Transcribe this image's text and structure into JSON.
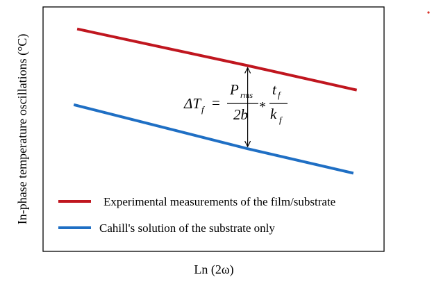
{
  "chart_data": {
    "type": "line",
    "title": "",
    "xlabel": "Ln (2ω)",
    "ylabel": "In-phase temperature oscillations (°C)",
    "xlim": [
      0,
      10
    ],
    "ylim": [
      0,
      10
    ],
    "grid": false,
    "legend_position": "bottom-left",
    "series": [
      {
        "name": "Experimental measurements of the film/substrate",
        "color": "#c0161f",
        "x": [
          1.0,
          6.0,
          9.2
        ],
        "y": [
          9.1,
          7.6,
          6.6
        ]
      },
      {
        "name": "Cahill's solution of the substrate only",
        "color": "#1f6fc4",
        "x": [
          0.9,
          6.0,
          9.1
        ],
        "y": [
          6.0,
          4.2,
          3.2
        ]
      }
    ],
    "annotation": {
      "lhs_main": "ΔT",
      "lhs_sub": "f",
      "equals": "=",
      "num1_main": "P",
      "num1_sub": "rms",
      "den1": "2b",
      "times": "*",
      "num2_main": "t",
      "num2_sub": "f",
      "den2_main": "k",
      "den2_sub": "f",
      "arrow_x": 6.0
    },
    "marker_color": "#d9342b"
  }
}
